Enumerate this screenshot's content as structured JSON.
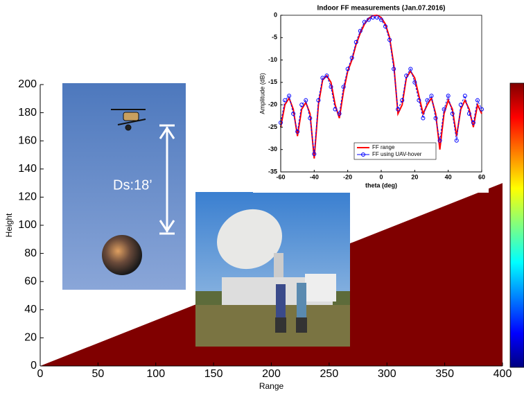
{
  "chart_data": [
    {
      "type": "area",
      "xlabel": "Range",
      "ylabel": "Height",
      "x": [
        0,
        400
      ],
      "values": [
        0,
        130
      ],
      "color": "#800000",
      "xlim": [
        0,
        400
      ],
      "xticks": [
        0,
        50,
        100,
        150,
        200,
        250,
        300,
        350,
        400
      ],
      "ylim": [
        0,
        200
      ],
      "yticks": [
        0,
        20,
        40,
        60,
        80,
        100,
        120,
        140,
        160,
        180,
        200
      ]
    },
    {
      "type": "line",
      "title": "Indoor FF measurements (Jan.07.2016)",
      "xlabel": "theta (deg)",
      "ylabel": "Amplitude (dB)",
      "x": [
        -60,
        -57.5,
        -55,
        -52.5,
        -50,
        -47.5,
        -45,
        -42.5,
        -40,
        -37.5,
        -35,
        -32.5,
        -30,
        -27.5,
        -25,
        -22.5,
        -20,
        -17.5,
        -15,
        -12.5,
        -10,
        -7.5,
        -5,
        -2.5,
        0,
        2.5,
        5,
        7.5,
        10,
        12.5,
        15,
        17.5,
        20,
        22.5,
        25,
        27.5,
        30,
        32.5,
        35,
        37.5,
        40,
        42.5,
        45,
        47.5,
        50,
        52.5,
        55,
        57.5,
        60
      ],
      "series": [
        {
          "name": "FF range",
          "color": "#ff0000",
          "values": [
            -25,
            -20,
            -18.5,
            -21,
            -27,
            -21,
            -19.5,
            -22,
            -32,
            -20,
            -14.5,
            -13.5,
            -15,
            -20,
            -23,
            -17,
            -12.5,
            -10,
            -6.5,
            -4,
            -2,
            -0.7,
            -0.1,
            0,
            -0.5,
            -2,
            -5,
            -11,
            -22,
            -20,
            -14,
            -12.5,
            -14,
            -18,
            -22,
            -20,
            -18.5,
            -22,
            -30,
            -22,
            -19,
            -21,
            -27,
            -21,
            -19,
            -21,
            -25,
            -20,
            -22
          ]
        },
        {
          "name": "FF using UAV-hover",
          "color": "#0000ff",
          "values": [
            -24,
            -19,
            -18,
            -22,
            -26,
            -20,
            -19,
            -23,
            -31,
            -19,
            -14,
            -13.5,
            -16,
            -21,
            -22,
            -16,
            -12,
            -9.5,
            -6,
            -3.5,
            -1.5,
            -1,
            -0.5,
            -0.5,
            -1,
            -2.5,
            -5.5,
            -12,
            -21,
            -19,
            -13.5,
            -12,
            -15,
            -19,
            -23,
            -19,
            -18,
            -23,
            -28,
            -21,
            -18,
            -22,
            -28,
            -20,
            -18,
            -22,
            -24,
            -19,
            -21
          ]
        }
      ],
      "xlim": [
        -60,
        60
      ],
      "xticks": [
        -60,
        -40,
        -20,
        0,
        20,
        40,
        60
      ],
      "ylim": [
        -35,
        0
      ],
      "yticks": [
        -35,
        -30,
        -25,
        -20,
        -15,
        -10,
        -5,
        0
      ],
      "legend": "lower center"
    }
  ],
  "photo_labels": [
    "Ds:18’"
  ]
}
